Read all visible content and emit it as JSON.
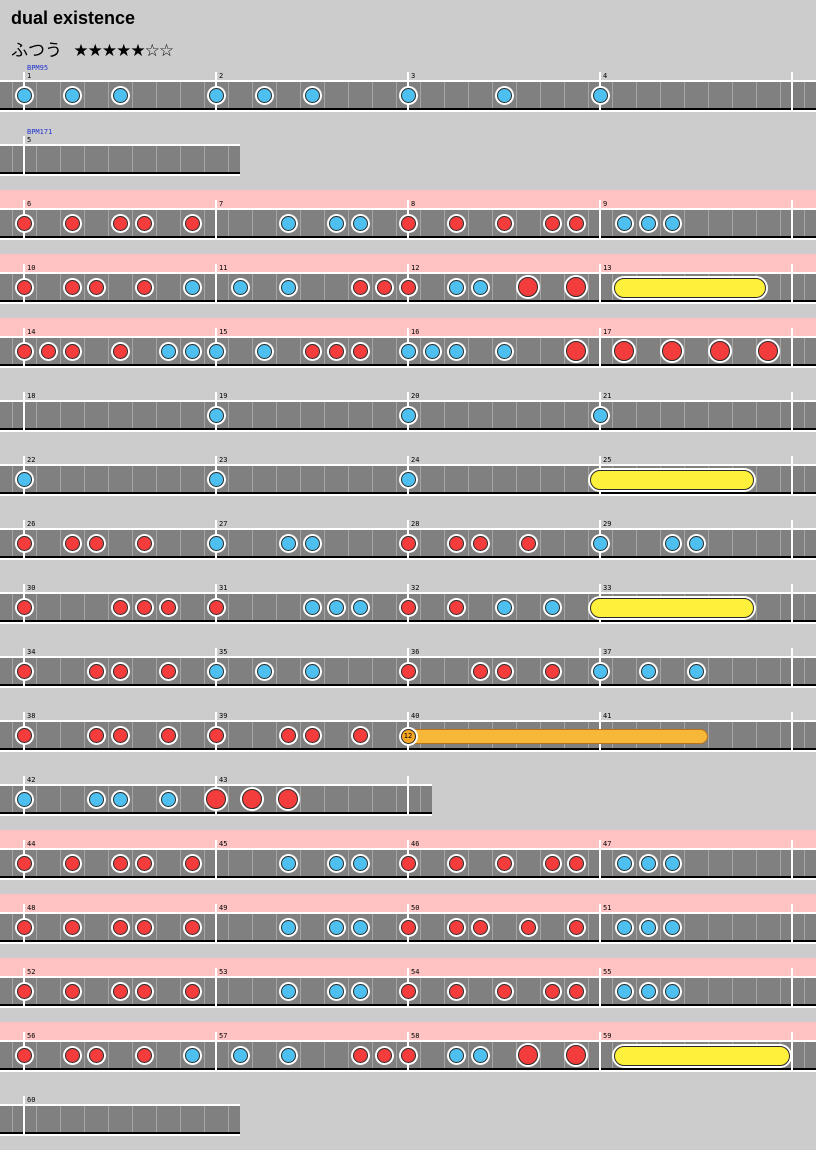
{
  "title": "dual existence",
  "course": "ふつう",
  "stars": "★★★★★☆☆",
  "colors": {
    "don": "#f33c3c",
    "ka": "#4ec0ef",
    "roll": "#fff03c",
    "balloon": "#f7b83a",
    "gogo": "#ffc3c3",
    "lane": "#808080"
  },
  "rows": [
    {
      "bars": [
        "1",
        "2",
        "3",
        "4"
      ],
      "bpm": "BPM95",
      "gogo": false,
      "end": 4,
      "notes": [
        [
          0,
          "ka"
        ],
        [
          2,
          "ka"
        ],
        [
          4,
          "ka"
        ],
        [
          8,
          "ka"
        ],
        [
          10,
          "ka"
        ],
        [
          12,
          "ka"
        ],
        [
          16,
          "ka"
        ],
        [
          20,
          "ka"
        ],
        [
          24,
          "ka"
        ]
      ]
    },
    {
      "bars": [
        "5"
      ],
      "bpm": "BPM171",
      "gogo": false,
      "end": 1,
      "notes": []
    },
    {
      "bars": [
        "6",
        "7",
        "8",
        "9"
      ],
      "gogo": true,
      "end": 4,
      "notes": [
        [
          0,
          "don"
        ],
        [
          2,
          "don"
        ],
        [
          4,
          "don"
        ],
        [
          5,
          "don"
        ],
        [
          7,
          "don"
        ],
        [
          11,
          "ka"
        ],
        [
          13,
          "ka"
        ],
        [
          14,
          "ka"
        ],
        [
          16,
          "don"
        ],
        [
          18,
          "don"
        ],
        [
          20,
          "don"
        ],
        [
          22,
          "don"
        ],
        [
          23,
          "don"
        ],
        [
          25,
          "ka"
        ],
        [
          26,
          "ka"
        ],
        [
          27,
          "ka"
        ]
      ]
    },
    {
      "bars": [
        "10",
        "11",
        "12",
        "13"
      ],
      "gogo": true,
      "end": 4,
      "notes": [
        [
          0,
          "don"
        ],
        [
          2,
          "don"
        ],
        [
          3,
          "don"
        ],
        [
          5,
          "don"
        ],
        [
          7,
          "ka"
        ],
        [
          9,
          "ka"
        ],
        [
          11,
          "ka"
        ],
        [
          14,
          "don"
        ],
        [
          15,
          "don"
        ],
        [
          16,
          "don"
        ],
        [
          18,
          "ka"
        ],
        [
          19,
          "ka"
        ],
        [
          21,
          "don",
          "big"
        ],
        [
          23,
          "don",
          "big"
        ]
      ],
      "roll": {
        "start": 25,
        "end": 30.5
      }
    },
    {
      "bars": [
        "14",
        "15",
        "16",
        "17"
      ],
      "gogo": true,
      "end": 4,
      "notes": [
        [
          0,
          "don"
        ],
        [
          1,
          "don"
        ],
        [
          2,
          "don"
        ],
        [
          4,
          "don"
        ],
        [
          6,
          "ka"
        ],
        [
          7,
          "ka"
        ],
        [
          8,
          "ka"
        ],
        [
          10,
          "ka"
        ],
        [
          12,
          "don"
        ],
        [
          13,
          "don"
        ],
        [
          14,
          "don"
        ],
        [
          16,
          "ka"
        ],
        [
          17,
          "ka"
        ],
        [
          18,
          "ka"
        ],
        [
          20,
          "ka"
        ],
        [
          23,
          "don",
          "big"
        ],
        [
          25,
          "don",
          "big"
        ],
        [
          27,
          "don",
          "big"
        ],
        [
          29,
          "don",
          "big"
        ],
        [
          31,
          "don",
          "big"
        ]
      ]
    },
    {
      "bars": [
        "18",
        "19",
        "20",
        "21"
      ],
      "gogo": false,
      "end": 4,
      "notes": [
        [
          8,
          "ka"
        ],
        [
          16,
          "ka"
        ],
        [
          24,
          "ka"
        ]
      ]
    },
    {
      "bars": [
        "22",
        "23",
        "24",
        "25"
      ],
      "gogo": false,
      "end": 4,
      "notes": [
        [
          0,
          "ka"
        ],
        [
          8,
          "ka"
        ],
        [
          16,
          "ka"
        ]
      ],
      "roll": {
        "start": 24,
        "end": 30
      }
    },
    {
      "bars": [
        "26",
        "27",
        "28",
        "29"
      ],
      "gogo": false,
      "end": 4,
      "notes": [
        [
          0,
          "don"
        ],
        [
          2,
          "don"
        ],
        [
          3,
          "don"
        ],
        [
          5,
          "don"
        ],
        [
          8,
          "ka"
        ],
        [
          11,
          "ka"
        ],
        [
          12,
          "ka"
        ],
        [
          16,
          "don"
        ],
        [
          18,
          "don"
        ],
        [
          19,
          "don"
        ],
        [
          21,
          "don"
        ],
        [
          24,
          "ka"
        ],
        [
          27,
          "ka"
        ],
        [
          28,
          "ka"
        ]
      ]
    },
    {
      "bars": [
        "30",
        "31",
        "32",
        "33"
      ],
      "gogo": false,
      "end": 4,
      "notes": [
        [
          0,
          "don"
        ],
        [
          4,
          "don"
        ],
        [
          5,
          "don"
        ],
        [
          6,
          "don"
        ],
        [
          8,
          "don"
        ],
        [
          12,
          "ka"
        ],
        [
          13,
          "ka"
        ],
        [
          14,
          "ka"
        ],
        [
          16,
          "don"
        ],
        [
          18,
          "don"
        ],
        [
          20,
          "ka"
        ],
        [
          22,
          "ka"
        ]
      ],
      "roll": {
        "start": 24,
        "end": 30
      }
    },
    {
      "bars": [
        "34",
        "35",
        "36",
        "37"
      ],
      "gogo": false,
      "end": 4,
      "notes": [
        [
          0,
          "don"
        ],
        [
          3,
          "don"
        ],
        [
          4,
          "don"
        ],
        [
          6,
          "don"
        ],
        [
          8,
          "ka"
        ],
        [
          10,
          "ka"
        ],
        [
          12,
          "ka"
        ],
        [
          16,
          "don"
        ],
        [
          19,
          "don"
        ],
        [
          20,
          "don"
        ],
        [
          22,
          "don"
        ],
        [
          24,
          "ka"
        ],
        [
          26,
          "ka"
        ],
        [
          28,
          "ka"
        ]
      ]
    },
    {
      "bars": [
        "38",
        "39",
        "40",
        "41"
      ],
      "gogo": false,
      "end": 4,
      "notes": [
        [
          0,
          "don"
        ],
        [
          3,
          "don"
        ],
        [
          4,
          "don"
        ],
        [
          6,
          "don"
        ],
        [
          8,
          "don"
        ],
        [
          11,
          "don"
        ],
        [
          12,
          "don"
        ],
        [
          14,
          "don"
        ]
      ],
      "balloon": {
        "start": 16,
        "end": 28.5,
        "hits": "12"
      }
    },
    {
      "bars": [
        "42",
        "43"
      ],
      "gogo": false,
      "end": 2,
      "wide": 17.5,
      "notes": [
        [
          0,
          "ka"
        ],
        [
          3,
          "ka"
        ],
        [
          4,
          "ka"
        ],
        [
          6,
          "ka"
        ],
        [
          8,
          "don",
          "big"
        ],
        [
          9.5,
          "don",
          "big"
        ],
        [
          11,
          "don",
          "big"
        ]
      ]
    },
    {
      "bars": [
        "44",
        "45",
        "46",
        "47"
      ],
      "gogo": true,
      "end": 4,
      "notes": [
        [
          0,
          "don"
        ],
        [
          2,
          "don"
        ],
        [
          4,
          "don"
        ],
        [
          5,
          "don"
        ],
        [
          7,
          "don"
        ],
        [
          11,
          "ka"
        ],
        [
          13,
          "ka"
        ],
        [
          14,
          "ka"
        ],
        [
          16,
          "don"
        ],
        [
          18,
          "don"
        ],
        [
          20,
          "don"
        ],
        [
          22,
          "don"
        ],
        [
          23,
          "don"
        ],
        [
          25,
          "ka"
        ],
        [
          26,
          "ka"
        ],
        [
          27,
          "ka"
        ]
      ]
    },
    {
      "bars": [
        "48",
        "49",
        "50",
        "51"
      ],
      "gogo": true,
      "end": 4,
      "notes": [
        [
          0,
          "don"
        ],
        [
          2,
          "don"
        ],
        [
          4,
          "don"
        ],
        [
          5,
          "don"
        ],
        [
          7,
          "don"
        ],
        [
          11,
          "ka"
        ],
        [
          13,
          "ka"
        ],
        [
          14,
          "ka"
        ],
        [
          16,
          "don"
        ],
        [
          18,
          "don"
        ],
        [
          19,
          "don"
        ],
        [
          21,
          "don"
        ],
        [
          23,
          "don"
        ],
        [
          25,
          "ka"
        ],
        [
          26,
          "ka"
        ],
        [
          27,
          "ka"
        ]
      ]
    },
    {
      "bars": [
        "52",
        "53",
        "54",
        "55"
      ],
      "gogo": true,
      "end": 4,
      "notes": [
        [
          0,
          "don"
        ],
        [
          2,
          "don"
        ],
        [
          4,
          "don"
        ],
        [
          5,
          "don"
        ],
        [
          7,
          "don"
        ],
        [
          11,
          "ka"
        ],
        [
          13,
          "ka"
        ],
        [
          14,
          "ka"
        ],
        [
          16,
          "don"
        ],
        [
          18,
          "don"
        ],
        [
          20,
          "don"
        ],
        [
          22,
          "don"
        ],
        [
          23,
          "don"
        ],
        [
          25,
          "ka"
        ],
        [
          26,
          "ka"
        ],
        [
          27,
          "ka"
        ]
      ]
    },
    {
      "bars": [
        "56",
        "57",
        "58",
        "59"
      ],
      "gogo": true,
      "end": 4,
      "notes": [
        [
          0,
          "don"
        ],
        [
          2,
          "don"
        ],
        [
          3,
          "don"
        ],
        [
          5,
          "don"
        ],
        [
          7,
          "ka"
        ],
        [
          9,
          "ka"
        ],
        [
          11,
          "ka"
        ],
        [
          14,
          "don"
        ],
        [
          15,
          "don"
        ],
        [
          16,
          "don"
        ],
        [
          18,
          "ka"
        ],
        [
          19,
          "ka"
        ],
        [
          21,
          "don",
          "big"
        ],
        [
          23,
          "don",
          "big"
        ]
      ],
      "roll": {
        "start": 25,
        "end": 31.5
      }
    },
    {
      "bars": [
        "60"
      ],
      "gogo": false,
      "end": 1,
      "notes": []
    }
  ]
}
